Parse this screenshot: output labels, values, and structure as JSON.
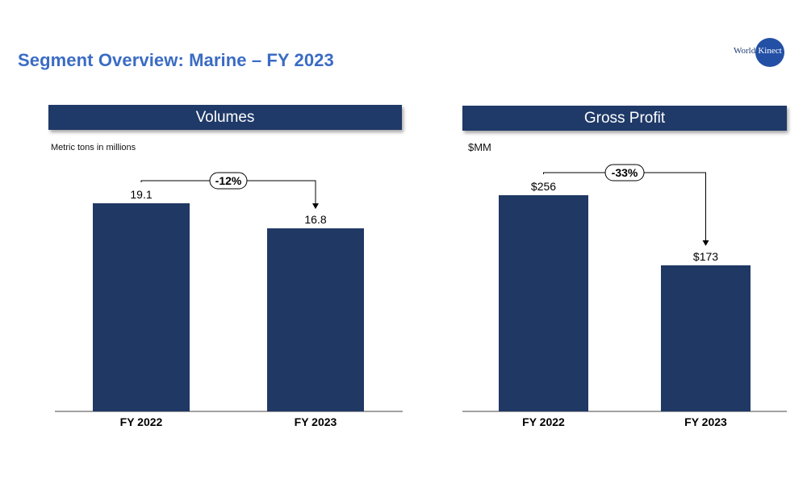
{
  "title": "Segment Overview: Marine – FY 2023",
  "logo": {
    "text_world": "World",
    "text_kinect": "Kinect"
  },
  "colors": {
    "title": "#3b6cc4",
    "header": "#1f3a68",
    "bar": "#1f3864",
    "logo": "#2350a5"
  },
  "chart_data": [
    {
      "type": "bar",
      "title": "Volumes",
      "ylabel": "Metric tons in millions",
      "categories": [
        "FY 2022",
        "FY 2023"
      ],
      "values": [
        19.1,
        16.8
      ],
      "value_labels": [
        "19.1",
        "16.8"
      ],
      "change_label": "-12%",
      "ylim": [
        0,
        19.1
      ],
      "grid": false
    },
    {
      "type": "bar",
      "title": "Gross Profit",
      "ylabel": "$MM",
      "categories": [
        "FY 2022",
        "FY 2023"
      ],
      "values": [
        256,
        173
      ],
      "value_labels": [
        "$256",
        "$173"
      ],
      "change_label": "-33%",
      "ylim": [
        0,
        256
      ],
      "grid": false
    }
  ]
}
